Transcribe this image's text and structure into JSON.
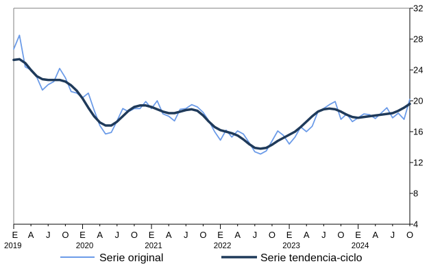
{
  "chart_data": {
    "type": "line",
    "title": "",
    "xlabel": "",
    "ylabel": "",
    "ylim": [
      4,
      32
    ],
    "yticks": [
      4,
      8,
      12,
      16,
      20,
      24,
      28,
      32
    ],
    "grid": false,
    "legend_position": "bottom",
    "month_labels": [
      "E",
      "A",
      "J",
      "O",
      "E",
      "A",
      "J",
      "O",
      "E",
      "A",
      "J",
      "O",
      "E",
      "A",
      "J",
      "O",
      "E",
      "A",
      "J",
      "O",
      "E",
      "A",
      "J",
      "O"
    ],
    "year_labels": [
      "2019",
      "2020",
      "2021",
      "2022",
      "2023",
      "2024"
    ],
    "series": [
      {
        "name": "Serie original",
        "color": "#6b9be8",
        "values": [
          26.7,
          28.5,
          24.4,
          24.0,
          23.1,
          21.4,
          22.1,
          22.5,
          24.2,
          23.0,
          21.2,
          21.0,
          20.4,
          21.0,
          18.8,
          16.8,
          15.7,
          15.9,
          17.4,
          19.0,
          18.6,
          19.0,
          19.0,
          19.9,
          19.0,
          20.0,
          18.3,
          18.0,
          17.4,
          18.9,
          19.0,
          19.5,
          19.2,
          18.5,
          17.4,
          16.0,
          14.9,
          16.2,
          15.3,
          16.1,
          15.7,
          14.6,
          13.4,
          13.1,
          13.5,
          14.8,
          16.1,
          15.5,
          14.4,
          15.3,
          16.6,
          16.0,
          16.7,
          18.6,
          19.0,
          19.5,
          19.9,
          17.6,
          18.3,
          17.3,
          17.8,
          18.3,
          18.2,
          17.7,
          18.4,
          19.1,
          17.8,
          18.4,
          17.6,
          20.2
        ]
      },
      {
        "name": "Serie tendencia-ciclo",
        "color": "#1f3a5a",
        "values": [
          25.3,
          25.4,
          24.9,
          24.0,
          23.2,
          22.8,
          22.7,
          22.7,
          22.7,
          22.5,
          22.0,
          21.3,
          20.3,
          19.1,
          18.0,
          17.2,
          16.8,
          16.8,
          17.3,
          18.0,
          18.7,
          19.2,
          19.4,
          19.4,
          19.2,
          18.9,
          18.6,
          18.4,
          18.4,
          18.6,
          18.8,
          18.9,
          18.7,
          18.1,
          17.3,
          16.6,
          16.2,
          16.0,
          15.8,
          15.5,
          15.0,
          14.4,
          13.9,
          13.8,
          13.9,
          14.3,
          14.8,
          15.2,
          15.6,
          16.0,
          16.6,
          17.3,
          18.0,
          18.6,
          18.9,
          19.0,
          18.9,
          18.6,
          18.2,
          17.9,
          17.8,
          17.9,
          18.0,
          18.1,
          18.2,
          18.3,
          18.4,
          18.7,
          19.1,
          19.6
        ]
      }
    ]
  }
}
